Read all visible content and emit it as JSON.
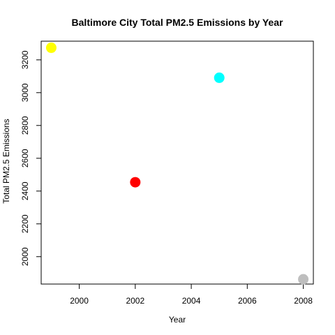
{
  "chart_data": {
    "type": "scatter",
    "title": "Baltimore City Total PM2.5 Emissions by Year",
    "xlabel": "Year",
    "ylabel": "Total PM2.5 Emissions",
    "x_ticks": [
      2000,
      2002,
      2004,
      2006,
      2008
    ],
    "y_ticks": [
      2000,
      2200,
      2400,
      2600,
      2800,
      3000,
      3200
    ],
    "xlim": [
      1998.64,
      2008.36
    ],
    "ylim": [
      1833,
      3314
    ],
    "grid": false,
    "legend": "none",
    "points": [
      {
        "x": 1999,
        "y": 3274,
        "color": "#ffff00"
      },
      {
        "x": 2002,
        "y": 2454,
        "color": "#ff0000"
      },
      {
        "x": 2005,
        "y": 3091,
        "color": "#00ffff"
      },
      {
        "x": 2008,
        "y": 1862,
        "color": "#bebebe"
      }
    ]
  }
}
